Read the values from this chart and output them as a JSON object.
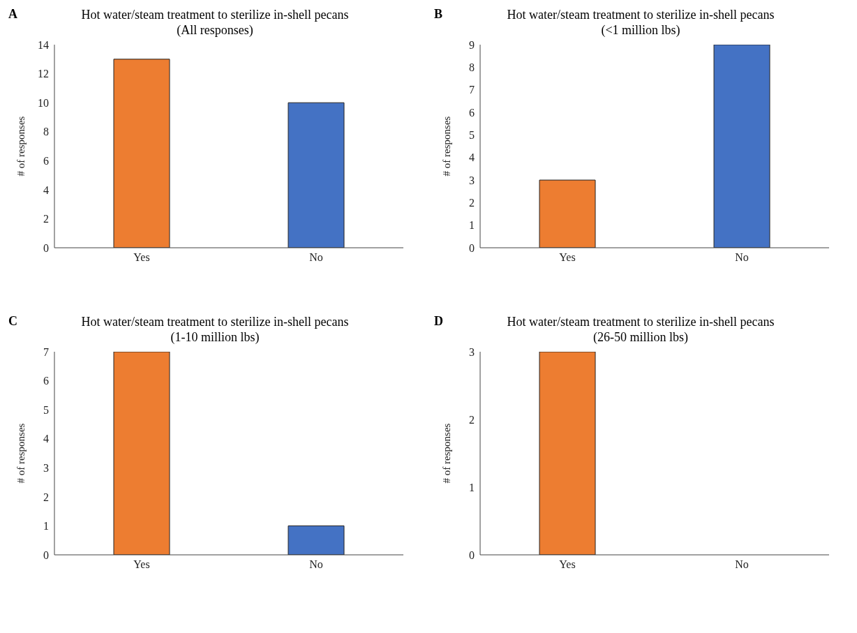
{
  "chart_data": [
    {
      "type": "bar",
      "title": "Hot water/steam treatment to sterilize in-shell pecans",
      "subtitle": "(All responses)",
      "ylabel": "# of responses",
      "categories": [
        "Yes",
        "No"
      ],
      "values": [
        13,
        10
      ],
      "colors": [
        "#ed7d31",
        "#4472c4"
      ],
      "ylim": [
        0,
        14
      ],
      "yticks": [
        0,
        2,
        4,
        6,
        8,
        10,
        12,
        14
      ],
      "annotations": [
        "A"
      ]
    },
    {
      "type": "bar",
      "title": "Hot water/steam treatment to sterilize in-shell pecans",
      "subtitle": "(<1 million  lbs)",
      "ylabel": "# of responses",
      "categories": [
        "Yes",
        "No"
      ],
      "values": [
        3,
        9
      ],
      "colors": [
        "#ed7d31",
        "#4472c4"
      ],
      "ylim": [
        0,
        9
      ],
      "yticks": [
        0,
        1,
        2,
        3,
        4,
        5,
        6,
        7,
        8,
        9
      ],
      "annotations": [
        "B"
      ]
    },
    {
      "type": "bar",
      "title": "Hot water/steam treatment to sterilize in-shell pecans",
      "subtitle": "(1-10 million  lbs)",
      "ylabel": "# of responses",
      "categories": [
        "Yes",
        "No"
      ],
      "values": [
        7,
        1
      ],
      "colors": [
        "#ed7d31",
        "#4472c4"
      ],
      "ylim": [
        0,
        7
      ],
      "yticks": [
        0,
        1,
        2,
        3,
        4,
        5,
        6,
        7
      ],
      "annotations": [
        "C"
      ]
    },
    {
      "type": "bar",
      "title": "Hot water/steam treatment to sterilize in-shell pecans",
      "subtitle": "(26-50 million  lbs)",
      "ylabel": "# of responses",
      "categories": [
        "Yes",
        "No"
      ],
      "values": [
        3,
        0
      ],
      "colors": [
        "#ed7d31",
        "#4472c4"
      ],
      "ylim": [
        0,
        3
      ],
      "yticks": [
        0,
        1,
        2,
        3
      ],
      "annotations": [
        "D"
      ]
    }
  ]
}
